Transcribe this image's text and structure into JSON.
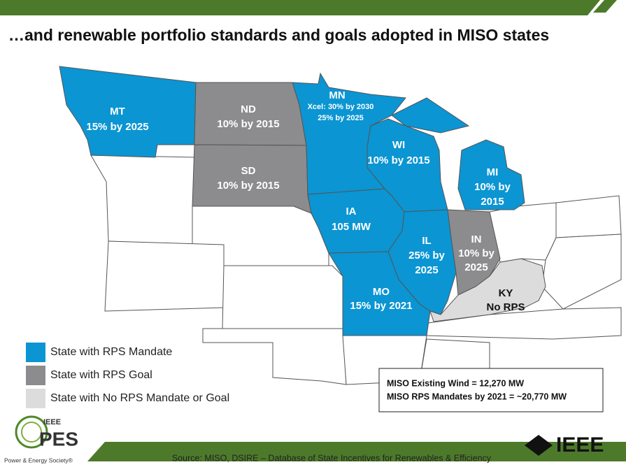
{
  "title": "…and renewable portfolio standards and goals adopted in MISO states",
  "states": [
    {
      "name": "MT",
      "lines": [
        "15% by 2025"
      ]
    },
    {
      "name": "ND",
      "lines": [
        "10% by 2015"
      ]
    },
    {
      "name": "SD",
      "lines": [
        "10% by 2015"
      ]
    },
    {
      "name": "MN",
      "lines": [
        "Xcel: 30% by 2030",
        "25% by 2025"
      ]
    },
    {
      "name": "WI",
      "lines": [
        "10% by 2015"
      ]
    },
    {
      "name": "IA",
      "lines": [
        "105 MW"
      ]
    },
    {
      "name": "MI",
      "lines": [
        "10% by",
        "2015"
      ]
    },
    {
      "name": "IL",
      "lines": [
        "25% by",
        "2025"
      ]
    },
    {
      "name": "IN",
      "lines": [
        "10% by",
        "2025"
      ]
    },
    {
      "name": "MO",
      "lines": [
        "15% by 2021"
      ]
    },
    {
      "name": "KY",
      "lines": [
        "No RPS"
      ]
    }
  ],
  "legend": {
    "items": [
      {
        "label": "State with RPS Mandate",
        "color": "#0b95d3"
      },
      {
        "label": "State with RPS Goal",
        "color": "#8c8c8e"
      },
      {
        "label": "State with No RPS Mandate or Goal",
        "color": "#dcdcdc"
      }
    ]
  },
  "summary": [
    "MISO Existing Wind =  12,270 MW",
    "MISO RPS Mandates by 2021 = ~20,770 MW"
  ],
  "footer": {
    "source": "Source: MISO, DSIRE – Database of State Incentives for Renewables & Efficiency",
    "logo_left": {
      "top": "IEEE",
      "main": "PES",
      "caption": "Power & Energy Society®"
    },
    "logo_right": "IEEE"
  }
}
